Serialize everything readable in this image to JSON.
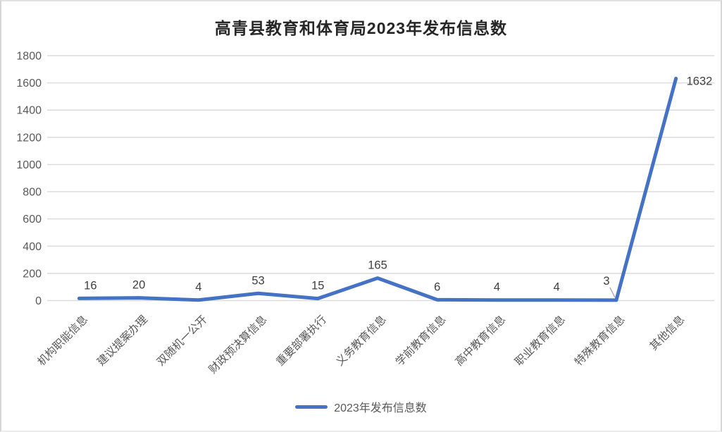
{
  "chart_data": {
    "type": "line",
    "title": "高青县教育和体育局2023年发布信息数",
    "categories": [
      "机构职能信息",
      "建议提案办理",
      "双随机一公开",
      "财政预决算信息",
      "重要部署执行",
      "义务教育信息",
      "学前教育信息",
      "高中教育信息",
      "职业教育信息",
      "特殊教育信息",
      "其他信息"
    ],
    "series": [
      {
        "name": "2023年发布信息数",
        "values": [
          16,
          20,
          4,
          53,
          15,
          165,
          6,
          4,
          4,
          3,
          1632
        ]
      }
    ],
    "xlabel": "",
    "ylabel": "",
    "ylim": [
      0,
      1800
    ],
    "ytick_step": 200,
    "grid": true,
    "legend_position": "bottom",
    "data_labels_visible": true,
    "colors": {
      "line": "#4472C4",
      "gridline": "#dcdcdc",
      "axis_text": "#595959",
      "data_label": "#404040",
      "title_text": "#262626",
      "leader_line": "#a6a6a6"
    }
  }
}
